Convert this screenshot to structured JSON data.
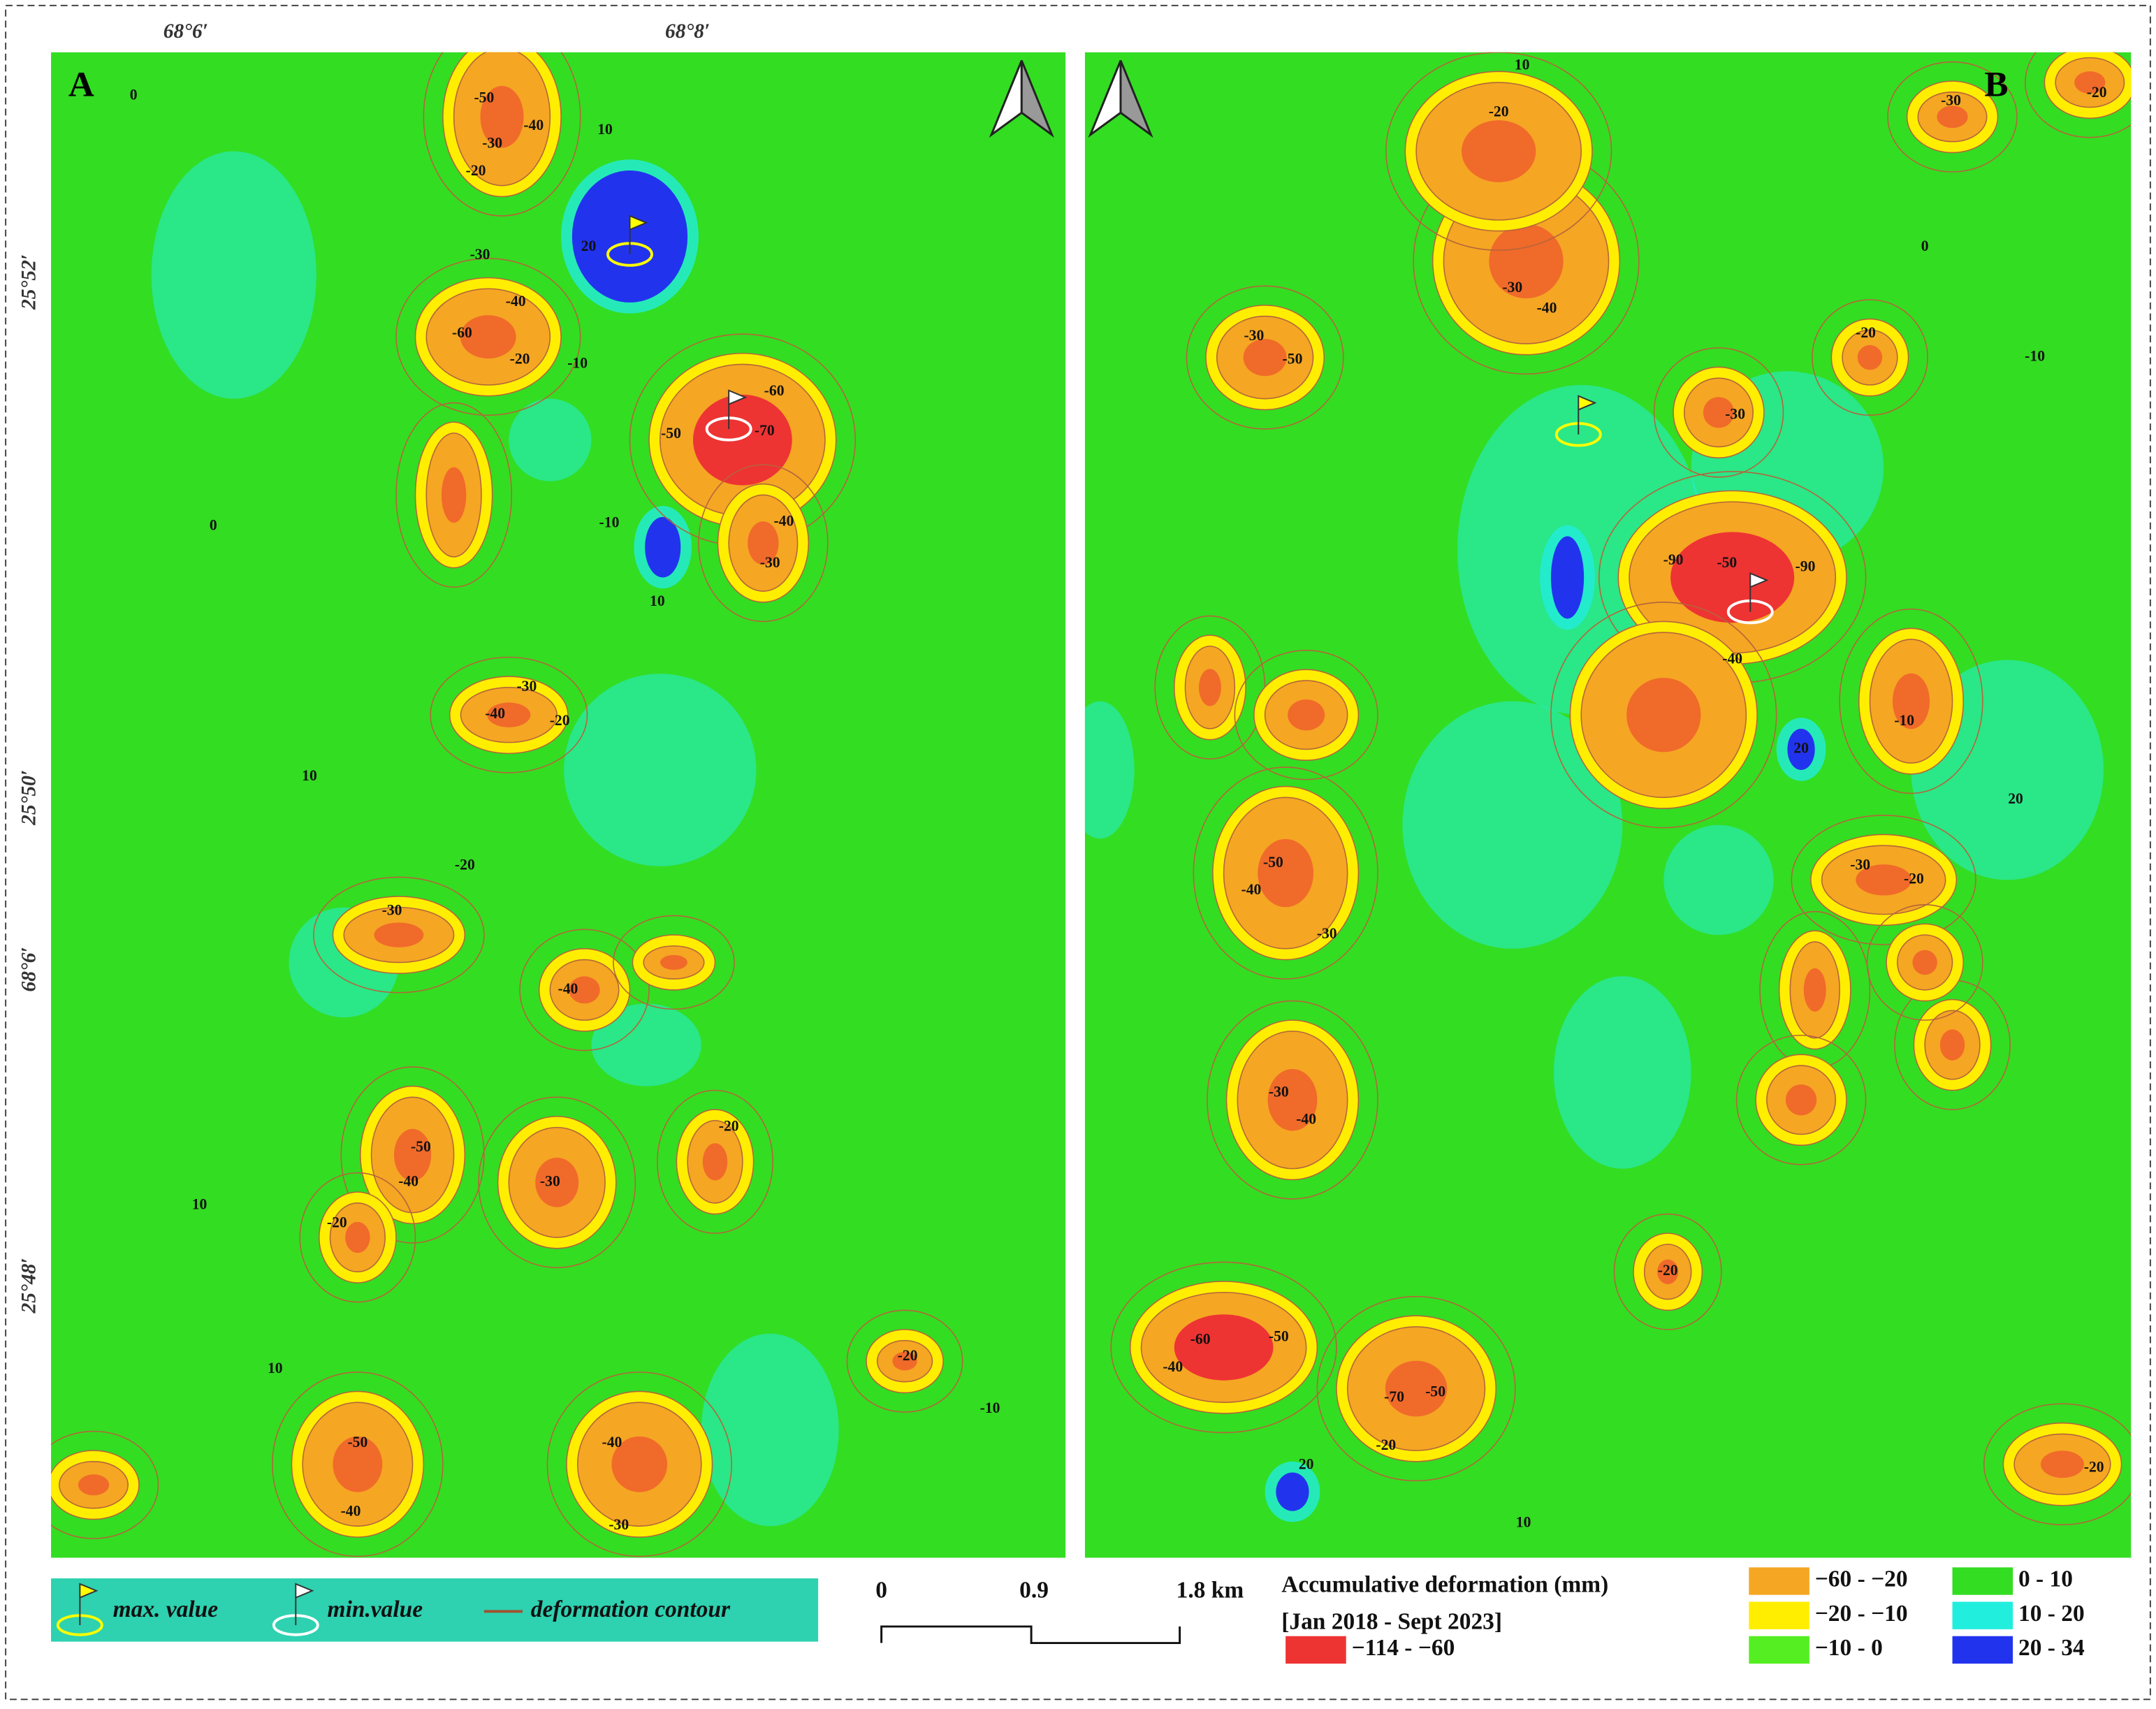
{
  "axes": {
    "top_labels": [
      "68°6′",
      "68°8′"
    ],
    "left_labels": [
      "25°52′",
      "25°50′",
      "68°6′",
      "25°48′"
    ]
  },
  "panels": [
    {
      "label": "A",
      "contour_labels": [
        "0",
        "-50",
        "-40",
        "-30",
        "-20",
        "10",
        "20",
        "-30",
        "-60",
        "-40",
        "-20",
        "-10",
        "-60",
        "-70",
        "-50",
        "-40",
        "-30",
        "-10",
        "10",
        "-40",
        "-30",
        "-20",
        "0",
        "10",
        "-30",
        "-20",
        "-40",
        "-50",
        "-40",
        "-20",
        "-30",
        "-20",
        "10",
        "-50",
        "-40",
        "-40",
        "-30",
        "-20",
        "-10",
        "10"
      ]
    },
    {
      "label": "B",
      "contour_labels": [
        "-20",
        "-30",
        "10",
        "-20",
        "-30",
        "-40",
        "-50",
        "-30",
        "-20",
        "-10",
        "-30",
        "-90",
        "-50",
        "-90",
        "-40",
        "-10",
        "-50",
        "-40",
        "-30",
        "-20",
        "-30",
        "-30",
        "-40",
        "-60",
        "-50",
        "-40",
        "-70",
        "-50",
        "-20",
        "20",
        "10",
        "-20",
        "20",
        "20",
        "-20",
        "0"
      ]
    }
  ],
  "legend": {
    "symbols": [
      "max. value",
      "min.value",
      "deformation contour"
    ],
    "scale_bar": [
      "0",
      "0.9",
      "1.8 km"
    ],
    "title": "Accumulative deformation (mm)",
    "period": "[Jan 2018 - Sept 2023]",
    "classes": [
      {
        "label": "−114 - −60",
        "color": "#ee3333"
      },
      {
        "label": "−60 - −20",
        "color": "#f5a623"
      },
      {
        "label": "−20 - −10",
        "color": "#ffee00"
      },
      {
        "label": "−10 - 0",
        "color": "#55ee22"
      },
      {
        "label": "0 - 10",
        "color": "#33dd22"
      },
      {
        "label": "10 - 20",
        "color": "#22eedd"
      },
      {
        "label": "20 - 34",
        "color": "#2233ee"
      }
    ]
  }
}
